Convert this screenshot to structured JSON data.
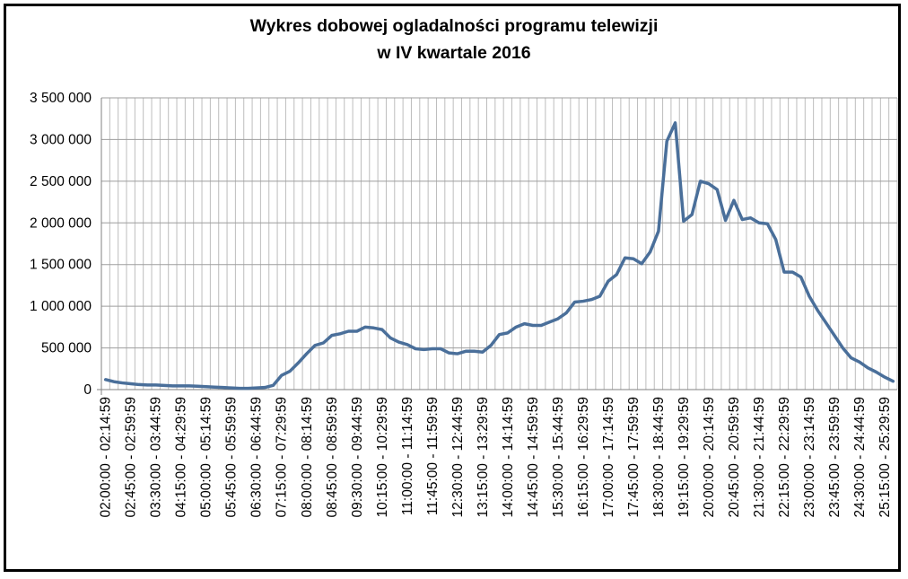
{
  "chart_data": {
    "type": "line",
    "title_line1": "Wykres dobowej ogladalności programu telewizji",
    "title_line2": "w IV kwartale 2016",
    "xlabel": "",
    "ylabel": "",
    "ylim": [
      0,
      3500000
    ],
    "yticks": [
      0,
      500000,
      1000000,
      1500000,
      2000000,
      2500000,
      3000000,
      3500000
    ],
    "ytick_labels": [
      "0",
      "500 000",
      "1 000 000",
      "1 500 000",
      "2 000 000",
      "2 500 000",
      "3 000 000",
      "3 500 000"
    ],
    "grid": true,
    "line_color": "#4a6f9a",
    "x_ticks_labeled": [
      "02:00:00 - 02:14:59",
      "02:45:00 - 02:59:59",
      "03:30:00 - 03:44:59",
      "04:15:00 - 04:29:59",
      "05:00:00 - 05:14:59",
      "05:45:00 - 05:59:59",
      "06:30:00 - 06:44:59",
      "07:15:00 - 07:29:59",
      "08:00:00 - 08:14:59",
      "08:45:00 - 08:59:59",
      "09:30:00 - 09:44:59",
      "10:15:00 - 10:29:59",
      "11:00:00 - 11:14:59",
      "11:45:00 - 11:59:59",
      "12:30:00 - 12:44:59",
      "13:15:00 - 13:29:59",
      "14:00:00 - 14:14:59",
      "14:45:00 - 14:59:59",
      "15:30:00 - 15:44:59",
      "16:15:00 - 16:29:59",
      "17:00:00 - 17:14:59",
      "17:45:00 - 17:59:59",
      "18:30:00 - 18:44:59",
      "19:15:00 - 19:29:59",
      "20:00:00 - 20:14:59",
      "20:45:00 - 20:59:59",
      "21:30:00 - 21:44:59",
      "22:15:00 - 22:29:59",
      "23:00:00 - 23:14:59",
      "23:45:00 - 23:59:59",
      "24:30:00 - 24:44:59",
      "25:15:00 - 25:29:59"
    ],
    "values": [
      120000,
      95000,
      80000,
      70000,
      60000,
      55000,
      55000,
      50000,
      45000,
      45000,
      45000,
      40000,
      35000,
      30000,
      25000,
      20000,
      15000,
      15000,
      20000,
      25000,
      50000,
      170000,
      220000,
      320000,
      430000,
      530000,
      560000,
      650000,
      670000,
      700000,
      700000,
      750000,
      740000,
      720000,
      620000,
      570000,
      540000,
      490000,
      480000,
      490000,
      490000,
      440000,
      430000,
      460000,
      460000,
      450000,
      530000,
      660000,
      680000,
      750000,
      790000,
      770000,
      770000,
      810000,
      850000,
      920000,
      1050000,
      1060000,
      1080000,
      1120000,
      1300000,
      1380000,
      1580000,
      1570000,
      1510000,
      1650000,
      1900000,
      2980000,
      3200000,
      2020000,
      2100000,
      2500000,
      2470000,
      2400000,
      2030000,
      2270000,
      2040000,
      2060000,
      2000000,
      1990000,
      1800000,
      1410000,
      1410000,
      1350000,
      1120000,
      950000,
      800000,
      650000,
      500000,
      380000,
      330000,
      260000,
      210000,
      150000,
      100000
    ]
  }
}
